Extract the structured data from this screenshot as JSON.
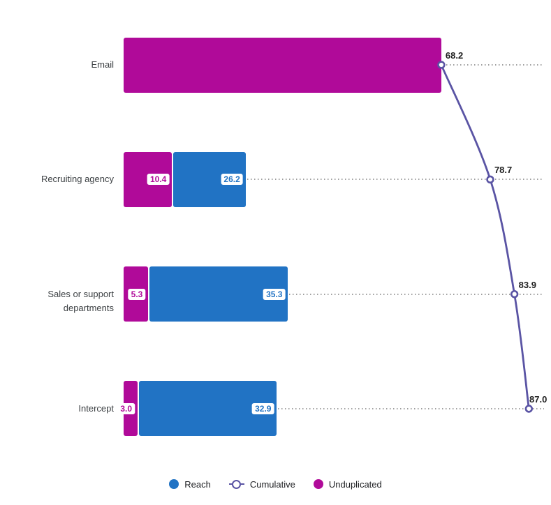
{
  "chart_data": {
    "type": "bar",
    "subtype": "horizontal-stacked-with-cumulative-line",
    "title": "",
    "categories": [
      "Email",
      "Recruiting agency",
      "Sales or support departments",
      "Intercept"
    ],
    "series": [
      {
        "name": "Reach",
        "type": "bar",
        "color": "#2173C4",
        "values": [
          68.2,
          26.2,
          35.3,
          32.9
        ]
      },
      {
        "name": "Unduplicated",
        "type": "bar-overlay",
        "color": "#B00A99",
        "values": [
          68.2,
          10.4,
          5.3,
          3.0
        ]
      },
      {
        "name": "Cumulative",
        "type": "line",
        "color": "#5A54A4",
        "values": [
          68.2,
          78.7,
          83.9,
          87.0
        ]
      }
    ],
    "bar_labels": {
      "reach": [
        null,
        "26.2",
        "35.3",
        "32.9"
      ],
      "unduplicated": [
        null,
        "10.4",
        "5.3",
        "3.0"
      ]
    },
    "line_labels": [
      "68.2",
      "78.7",
      "83.9",
      "87.0"
    ],
    "xlim": [
      0,
      91
    ],
    "grid": "dotted-row-leader-lines",
    "legend_position": "bottom-center",
    "legend_items": [
      {
        "label": "Reach",
        "glyph": "filled-circle",
        "color": "#2173C4"
      },
      {
        "label": "Cumulative",
        "glyph": "open-circle-on-line",
        "color": "#5A54A4"
      },
      {
        "label": "Unduplicated",
        "glyph": "filled-circle",
        "color": "#B00A99"
      }
    ],
    "colors": {
      "reach": "#2173C4",
      "unduplicated": "#B00A99",
      "cumulative": "#5A54A4",
      "leader_dots": "#9E9E9E",
      "category_label": "#3C4043",
      "value_label": "#1F1F1F",
      "background": "#FFFFFF"
    }
  }
}
